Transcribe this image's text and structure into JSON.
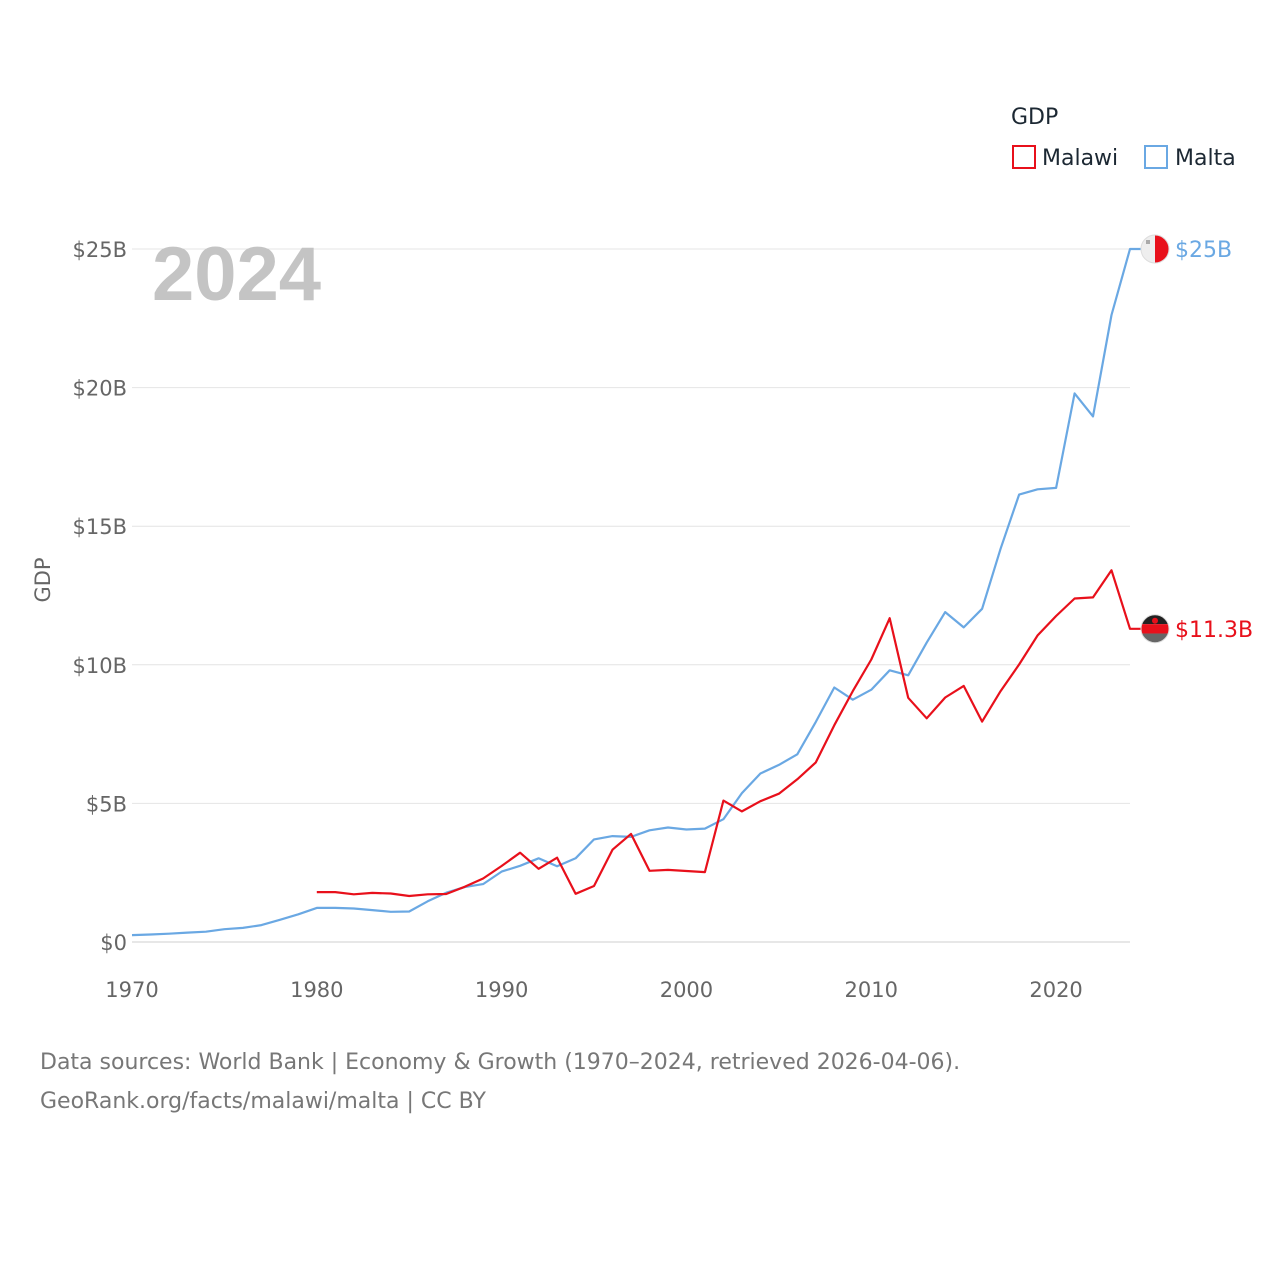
{
  "chart_data": {
    "type": "line",
    "title": "GDP",
    "ylabel": "GDP",
    "current_year_label": "2024",
    "xlim": [
      1970,
      2024
    ],
    "ylim": [
      0,
      25
    ],
    "x_ticks": [
      1970,
      1980,
      1990,
      2000,
      2010,
      2020
    ],
    "y_ticks": [
      {
        "value": 0,
        "label": "$0"
      },
      {
        "value": 5,
        "label": "$5B"
      },
      {
        "value": 10,
        "label": "$10B"
      },
      {
        "value": 15,
        "label": "$15B"
      },
      {
        "value": 20,
        "label": "$20B"
      },
      {
        "value": 25,
        "label": "$25B"
      }
    ],
    "legend_title": "GDP",
    "series": [
      {
        "name": "Malawi",
        "color": "#e8101b",
        "end_label": "$11.3B",
        "flag_icon": "malawi-flag-icon",
        "x": [
          1980,
          1981,
          1982,
          1983,
          1984,
          1985,
          1986,
          1987,
          1988,
          1989,
          1990,
          1991,
          1992,
          1993,
          1994,
          1995,
          1996,
          1997,
          1998,
          1999,
          2000,
          2001,
          2002,
          2003,
          2004,
          2005,
          2006,
          2007,
          2008,
          2009,
          2010,
          2011,
          2012,
          2013,
          2014,
          2015,
          2016,
          2017,
          2018,
          2019,
          2020,
          2021,
          2022,
          2023,
          2024
        ],
        "values": [
          1.8,
          1.8,
          1.72,
          1.77,
          1.75,
          1.66,
          1.72,
          1.73,
          1.99,
          2.29,
          2.74,
          3.22,
          2.64,
          3.04,
          1.74,
          2.02,
          3.33,
          3.9,
          2.57,
          2.6,
          2.56,
          2.52,
          5.1,
          4.71,
          5.08,
          5.35,
          5.87,
          6.48,
          7.82,
          9.05,
          10.19,
          11.68,
          8.81,
          8.07,
          8.82,
          9.24,
          7.95,
          9.05,
          10.01,
          11.06,
          11.76,
          12.39,
          12.43,
          13.41,
          11.3
        ]
      },
      {
        "name": "Malta",
        "color": "#6aa8e3",
        "end_label": "$25B",
        "flag_icon": "malta-flag-icon",
        "x": [
          1970,
          1971,
          1972,
          1973,
          1974,
          1975,
          1976,
          1977,
          1978,
          1979,
          1980,
          1981,
          1982,
          1983,
          1984,
          1985,
          1986,
          1987,
          1988,
          1989,
          1990,
          1991,
          1992,
          1993,
          1994,
          1995,
          1996,
          1997,
          1998,
          1999,
          2000,
          2001,
          2002,
          2003,
          2004,
          2005,
          2006,
          2007,
          2008,
          2009,
          2010,
          2011,
          2012,
          2013,
          2014,
          2015,
          2016,
          2017,
          2018,
          2019,
          2020,
          2021,
          2022,
          2023,
          2024
        ],
        "values": [
          0.25,
          0.27,
          0.3,
          0.34,
          0.37,
          0.46,
          0.51,
          0.61,
          0.8,
          1.0,
          1.23,
          1.23,
          1.21,
          1.15,
          1.09,
          1.1,
          1.47,
          1.78,
          1.98,
          2.09,
          2.54,
          2.75,
          3.02,
          2.73,
          3.02,
          3.7,
          3.82,
          3.79,
          4.03,
          4.13,
          4.06,
          4.09,
          4.43,
          5.37,
          6.08,
          6.39,
          6.77,
          7.94,
          9.18,
          8.74,
          9.1,
          9.8,
          9.62,
          10.8,
          11.9,
          11.35,
          12.02,
          14.19,
          16.14,
          16.33,
          16.38,
          19.79,
          18.96,
          22.62,
          25.0
        ]
      }
    ]
  },
  "footer": {
    "sources": "Data sources: World Bank | Economy & Growth (1970–2024, retrieved 2026-04-06).",
    "credit": "GeoRank.org/facts/malawi/malta | CC BY"
  }
}
